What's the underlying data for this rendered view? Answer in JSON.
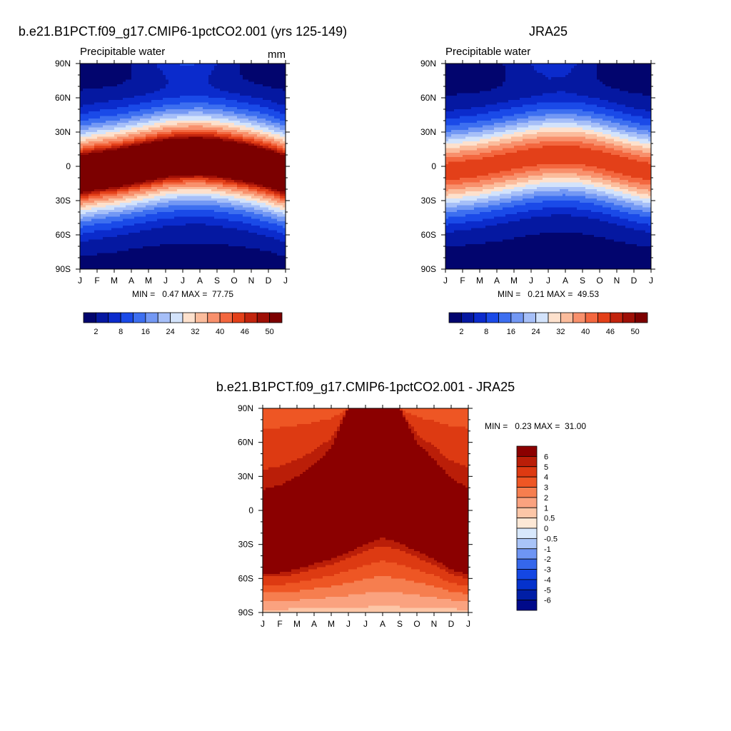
{
  "chart_data": [
    {
      "type": "heatmap",
      "title": "b.e21.B1PCT.f09_g17.CMIP6-1pctCO2.001 (yrs 125-149)",
      "subtitle": "Precipitable water",
      "units": "mm",
      "stats_label": "MIN =   0.47 MAX =  77.75",
      "x_ticks": [
        "J",
        "F",
        "M",
        "A",
        "M",
        "J",
        "J",
        "A",
        "S",
        "O",
        "N",
        "D",
        "J"
      ],
      "y_ticks": [
        "90N",
        "60N",
        "30N",
        "0",
        "30S",
        "60S",
        "90S"
      ],
      "levels": [
        2,
        5,
        8,
        12,
        16,
        20,
        24,
        28,
        32,
        36,
        40,
        43,
        46,
        48,
        50
      ],
      "colorbar_labels": [
        "2",
        "8",
        "16",
        "24",
        "32",
        "40",
        "46",
        "50"
      ],
      "model": {
        "peak": 60,
        "width": 25,
        "base": 1.5,
        "lat_center": [
          -7,
          -4,
          -2,
          1,
          4,
          7,
          8.5,
          9,
          7.5,
          5,
          2,
          -2,
          -7
        ],
        "pole_n": [
          0.5,
          0.5,
          0.8,
          2,
          4.5,
          8,
          11,
          10,
          6,
          2.5,
          1,
          0.5,
          0.5
        ],
        "pole_s": [
          1.5,
          1.5,
          1.5,
          1.2,
          1,
          0.9,
          0.8,
          0.8,
          0.8,
          0.9,
          1,
          1.2,
          1.5
        ]
      }
    },
    {
      "type": "heatmap",
      "title": "JRA25",
      "subtitle": "Precipitable water",
      "stats_label": "MIN =   0.21 MAX =  49.53",
      "x_ticks": [
        "J",
        "F",
        "M",
        "A",
        "M",
        "J",
        "J",
        "A",
        "S",
        "O",
        "N",
        "D",
        "J"
      ],
      "y_ticks": [
        "90N",
        "60N",
        "30N",
        "0",
        "30S",
        "60S",
        "90S"
      ],
      "levels": [
        2,
        5,
        8,
        12,
        16,
        20,
        24,
        28,
        32,
        36,
        40,
        43,
        46,
        48,
        50
      ],
      "colorbar_labels": [
        "2",
        "8",
        "16",
        "24",
        "32",
        "40",
        "46",
        "50"
      ],
      "model": {
        "peak": 44,
        "width": 24,
        "base": 1.2,
        "lat_center": [
          -5,
          -3,
          -1,
          2,
          5,
          8,
          10,
          10.5,
          9,
          6,
          2,
          -2,
          -5
        ],
        "pole_n": [
          0.5,
          0.5,
          0.7,
          1.5,
          3.5,
          6.5,
          9,
          8.5,
          5,
          2,
          0.8,
          0.5,
          0.5
        ],
        "pole_s": [
          1,
          1,
          1,
          0.8,
          0.6,
          0.5,
          0.4,
          0.4,
          0.5,
          0.6,
          0.8,
          1,
          1
        ]
      }
    },
    {
      "type": "heatmap",
      "title": "b.e21.B1PCT.f09_g17.CMIP6-1pctCO2.001 - JRA25",
      "stats_label": "MIN =   0.23 MAX =  31.00",
      "x_ticks": [
        "J",
        "F",
        "M",
        "A",
        "M",
        "J",
        "J",
        "A",
        "S",
        "O",
        "N",
        "D",
        "J"
      ],
      "y_ticks": [
        "90N",
        "60N",
        "30N",
        "0",
        "30S",
        "60S",
        "90S"
      ],
      "levels": [
        -6,
        -5,
        -4,
        -3,
        -2,
        -1,
        -0.5,
        0,
        0.5,
        1,
        2,
        3,
        4,
        5,
        6
      ],
      "colorbar_labels": [
        "-6",
        "-5",
        "-4",
        "-3",
        "-2",
        "-1",
        "-0.5",
        "0",
        "0.5",
        "1",
        "2",
        "3",
        "4",
        "5",
        "6"
      ],
      "model": {
        "s_edge": [
          -55,
          -55,
          -52,
          -47,
          -43,
          -37,
          -30,
          -24,
          -29,
          -36,
          -43,
          -52,
          -57
        ],
        "n_edge": [
          18,
          22,
          30,
          40,
          55,
          90,
          90,
          90,
          90,
          60,
          45,
          28,
          20
        ],
        "hi": 10,
        "lo_s": 0.6,
        "lo_n": 3.5
      }
    }
  ],
  "palettes": {
    "absolute": [
      "#02056e",
      "#0518a1",
      "#0b2bcc",
      "#1a4ae8",
      "#3d6ff0",
      "#7398f4",
      "#a6bff8",
      "#d3e3fb",
      "#fde1cd",
      "#fbbc9c",
      "#f8906c",
      "#f3673f",
      "#e34019",
      "#c2240d",
      "#9e0f06",
      "#7c0000"
    ],
    "difference": [
      "#000a8a",
      "#001ea6",
      "#0532cc",
      "#1447e3",
      "#3567eb",
      "#6e95f4",
      "#a9c4f8",
      "#d8e8fc",
      "#fde8d6",
      "#fcc6a7",
      "#faa27f",
      "#f67e4f",
      "#ee5624",
      "#dd3a12",
      "#ba1e08",
      "#8b0000"
    ]
  }
}
